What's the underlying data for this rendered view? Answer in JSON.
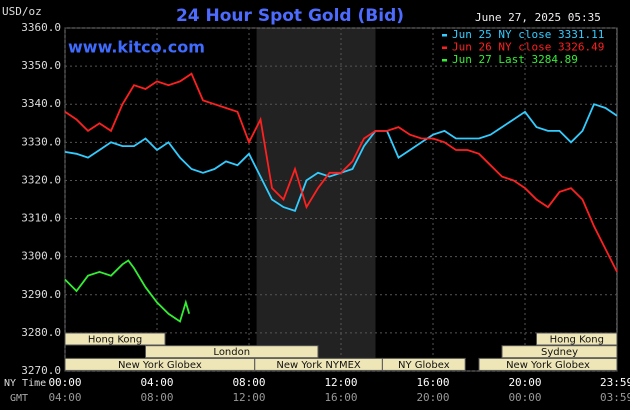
{
  "chart_data": {
    "type": "line",
    "title": "24 Hour Spot Gold (Bid)",
    "unit_label": "USD/oz",
    "watermark": "www.kitco.com",
    "timestamp": "June 27, 2025 05:35",
    "x_axis_labels": [
      "NY Time",
      "GMT"
    ],
    "ylim": [
      3270,
      3360
    ],
    "yticks": [
      {
        "value": 3270,
        "label": "3270.0"
      },
      {
        "value": 3280,
        "label": "3280.0"
      },
      {
        "value": 3290,
        "label": "3290.0"
      },
      {
        "value": 3300,
        "label": "3300.0"
      },
      {
        "value": 3310,
        "label": "3310.0"
      },
      {
        "value": 3320,
        "label": "3320.0"
      },
      {
        "value": 3330,
        "label": "3330.0"
      },
      {
        "value": 3340,
        "label": "3340.0"
      },
      {
        "value": 3350,
        "label": "3350.0"
      },
      {
        "value": 3360,
        "label": "3360.0"
      }
    ],
    "xlim": [
      0,
      24
    ],
    "xticks": [
      {
        "value": 0,
        "label": "00:00"
      },
      {
        "value": 4,
        "label": "04:00"
      },
      {
        "value": 8,
        "label": "08:00"
      },
      {
        "value": 12,
        "label": "12:00"
      },
      {
        "value": 16,
        "label": "16:00"
      },
      {
        "value": 20,
        "label": "20:00"
      },
      {
        "value": 23.98,
        "label": "23:59"
      }
    ],
    "gmt_ticks": [
      {
        "value": 0,
        "label": "04:00"
      },
      {
        "value": 4,
        "label": "08:00"
      },
      {
        "value": 8,
        "label": "12:00"
      },
      {
        "value": 12,
        "label": "16:00"
      },
      {
        "value": 16,
        "label": "20:00"
      },
      {
        "value": 20,
        "label": "00:00"
      },
      {
        "value": 23.98,
        "label": "03:59"
      }
    ],
    "grid": true,
    "shaded": [
      8.33,
      13.5
    ],
    "session_rows": [
      [
        {
          "name": "Hong Kong",
          "start": 0,
          "end": 4.35
        },
        {
          "name": "Hong Kong",
          "start": 20.5,
          "end": 24
        }
      ],
      [
        {
          "name": "London",
          "start": 3.5,
          "end": 11
        },
        {
          "name": "Sydney",
          "start": 19,
          "end": 24
        }
      ],
      [
        {
          "name": "New York Globex",
          "start": 0,
          "end": 8.25
        },
        {
          "name": "New York NYMEX",
          "start": 8.25,
          "end": 13.8
        },
        {
          "name": "NY Globex",
          "start": 13.8,
          "end": 17.4
        },
        {
          "name": "New York Globex",
          "start": 18,
          "end": 24
        }
      ]
    ],
    "series": [
      {
        "name": "Jun 25 NY close 3331.11",
        "color": "#33ccff",
        "x": [
          0,
          0.5,
          1,
          1.5,
          2,
          2.5,
          3,
          3.5,
          4,
          4.5,
          5,
          5.5,
          6,
          6.5,
          7,
          7.5,
          8,
          8.5,
          9,
          9.5,
          10,
          10.5,
          11,
          11.5,
          12,
          12.5,
          13,
          13.5,
          14,
          14.5,
          15,
          15.5,
          16,
          16.5,
          17,
          17.5,
          18,
          18.5,
          19,
          19.5,
          20,
          20.5,
          21,
          21.5,
          22,
          22.5,
          23,
          23.5,
          24
        ],
        "values": [
          3327.5,
          3327,
          3326,
          3328,
          3330,
          3329,
          3329,
          3331,
          3328,
          3330,
          3326,
          3323,
          3322,
          3323,
          3325,
          3324,
          3327,
          3321,
          3315,
          3313,
          3312,
          3320,
          3322,
          3321,
          3322,
          3323,
          3329,
          3333,
          3333,
          3326,
          3328,
          3330,
          3332,
          3333,
          3331,
          3331,
          3331,
          3332,
          3334,
          3336,
          3338,
          3334,
          3333,
          3333,
          3330,
          3333,
          3340,
          3339,
          3337
        ]
      },
      {
        "name": "Jun 26 NY close 3326.49",
        "color": "#ff2020",
        "x": [
          0,
          0.5,
          1,
          1.5,
          2,
          2.5,
          3,
          3.5,
          4,
          4.5,
          5,
          5.5,
          6,
          6.5,
          7,
          7.5,
          8,
          8.5,
          9,
          9.5,
          10,
          10.5,
          11,
          11.5,
          12,
          12.5,
          13,
          13.5,
          14,
          14.5,
          15,
          15.5,
          16,
          16.5,
          17,
          17.5,
          18,
          18.5,
          19,
          19.5,
          20,
          20.5,
          21,
          21.5,
          22,
          22.5,
          23,
          23.5,
          24
        ],
        "values": [
          3338,
          3336,
          3333,
          3335,
          3333,
          3340,
          3345,
          3344,
          3346,
          3345,
          3346,
          3348,
          3341,
          3340,
          3339,
          3338,
          3330,
          3336,
          3318,
          3315,
          3323,
          3313,
          3318,
          3322,
          3322,
          3325,
          3331,
          3333,
          3333,
          3334,
          3332,
          3331,
          3331,
          3330,
          3328,
          3328,
          3327,
          3324,
          3321,
          3320,
          3318,
          3315,
          3313,
          3317,
          3318,
          3315,
          3308,
          3302,
          3296
        ]
      },
      {
        "name": "Jun 27 Last 3284.89",
        "color": "#33ee33",
        "x": [
          0,
          0.5,
          1,
          1.5,
          2,
          2.5,
          2.75,
          3,
          3.5,
          4,
          4.5,
          5,
          5.25,
          5.4
        ],
        "values": [
          3294,
          3291,
          3295,
          3296,
          3295,
          3298,
          3299,
          3297,
          3292,
          3288,
          3285,
          3283,
          3288,
          3285
        ]
      }
    ]
  }
}
